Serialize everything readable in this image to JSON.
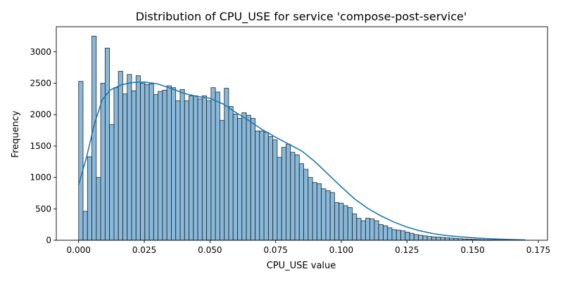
{
  "chart_data": {
    "type": "bar",
    "title": "Distribution of CPU_USE for service 'compose-post-service'",
    "xlabel": "CPU_USE value",
    "ylabel": "Frequency",
    "xlim": [
      -0.0085,
      0.1785
    ],
    "ylim": [
      0,
      3400
    ],
    "grid": false,
    "bin_start": 0.0,
    "bin_width": 0.00168,
    "xticks": [
      0.0,
      0.025,
      0.05,
      0.075,
      0.1,
      0.125,
      0.15,
      0.175
    ],
    "xtick_labels": [
      "0.000",
      "0.025",
      "0.050",
      "0.075",
      "0.100",
      "0.125",
      "0.150",
      "0.175"
    ],
    "yticks": [
      0,
      500,
      1000,
      1500,
      2000,
      2500,
      3000
    ],
    "ytick_labels": [
      "0",
      "500",
      "1000",
      "1500",
      "2000",
      "2500",
      "3000"
    ],
    "series": [
      {
        "kind": "histogram",
        "color": "#1f77b4",
        "values": [
          2530,
          460,
          1330,
          3250,
          1000,
          2500,
          3060,
          1840,
          2430,
          2690,
          2330,
          2640,
          2380,
          2620,
          2500,
          2480,
          2490,
          2320,
          2370,
          2390,
          2460,
          2430,
          2220,
          2400,
          2220,
          2300,
          2300,
          2250,
          2300,
          2220,
          2430,
          2360,
          1910,
          2420,
          2130,
          2010,
          1940,
          2030,
          1990,
          1940,
          1740,
          1740,
          1720,
          1650,
          1600,
          1320,
          1480,
          1530,
          1400,
          1360,
          1220,
          1130,
          1000,
          920,
          900,
          820,
          790,
          760,
          600,
          590,
          550,
          520,
          420,
          350,
          310,
          350,
          340,
          310,
          250,
          230,
          200,
          170,
          160,
          150,
          130,
          110,
          90,
          80,
          70,
          60,
          55,
          50,
          45,
          40,
          35,
          30,
          25,
          20,
          18,
          15,
          12,
          10,
          8,
          7,
          6,
          5,
          4,
          3,
          2,
          2,
          1,
          1
        ]
      },
      {
        "kind": "kde",
        "color": "#1f77b4",
        "x": [
          0.0,
          0.003,
          0.006,
          0.009,
          0.012,
          0.016,
          0.02,
          0.025,
          0.03,
          0.035,
          0.04,
          0.045,
          0.05,
          0.055,
          0.06,
          0.065,
          0.07,
          0.075,
          0.08,
          0.085,
          0.09,
          0.095,
          0.1,
          0.105,
          0.11,
          0.115,
          0.12,
          0.125,
          0.13,
          0.135,
          0.14,
          0.145,
          0.15,
          0.155,
          0.16,
          0.165,
          0.17
        ],
        "y": [
          880,
          1320,
          1850,
          2240,
          2390,
          2470,
          2510,
          2520,
          2490,
          2420,
          2340,
          2290,
          2260,
          2170,
          2030,
          1900,
          1760,
          1640,
          1530,
          1420,
          1250,
          1050,
          850,
          660,
          510,
          390,
          290,
          210,
          150,
          105,
          75,
          55,
          40,
          28,
          18,
          10,
          5
        ]
      }
    ]
  }
}
